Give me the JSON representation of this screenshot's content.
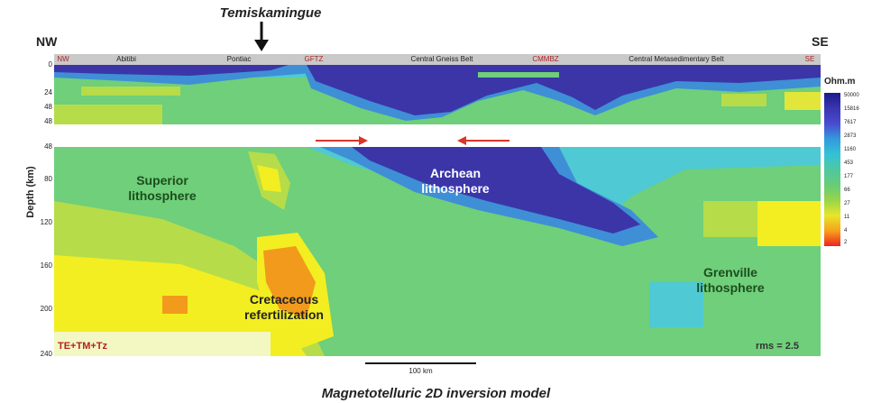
{
  "header": {
    "location_label": "Temiskamingue"
  },
  "direction": {
    "left": "NW",
    "right": "SE"
  },
  "provinces": [
    {
      "label": "NW",
      "red": true
    },
    {
      "label": "Abitibi",
      "red": false
    },
    {
      "label": "Pontiac",
      "red": false
    },
    {
      "label": "GFTZ",
      "red": true
    },
    {
      "label": "Central Gneiss Belt",
      "red": false
    },
    {
      "label": "CMMBZ",
      "red": true
    },
    {
      "label": "Central Metasedimentary Belt",
      "red": false
    },
    {
      "label": "SE",
      "red": true
    }
  ],
  "axis": {
    "ylabel": "Depth (km)",
    "top_ticks": [
      "0",
      "24",
      "48",
      "48"
    ],
    "bottom_ticks": [
      "48",
      "80",
      "120",
      "160",
      "200",
      "240"
    ]
  },
  "regions": {
    "superior": "Superior\nlithosphere",
    "archean": "Archean\nlithosphere",
    "cretaceous": "Cretaceous\nrefertilization",
    "grenville": "Grenville\nlithosphere"
  },
  "annotations": {
    "components": "TE+TM+Tz",
    "rms": "rms = 2.5"
  },
  "legend": {
    "title": "Ohm.m",
    "values": [
      "50000",
      "15816",
      "7617",
      "2873",
      "1160",
      "453",
      "177",
      "66",
      "27",
      "11",
      "4",
      "2"
    ]
  },
  "scale": {
    "label": "100 km"
  },
  "caption": "Magnetotelluric 2D inversion model",
  "colors": {
    "deep_blue": "#3b35a8",
    "blue": "#3e8fd6",
    "cyan": "#4fc9d4",
    "green": "#6fcf7a",
    "yellow_green": "#b6dc4a",
    "yellow": "#f2ee22",
    "orange": "#f29a1c",
    "arrow_red": "#d9352a"
  }
}
